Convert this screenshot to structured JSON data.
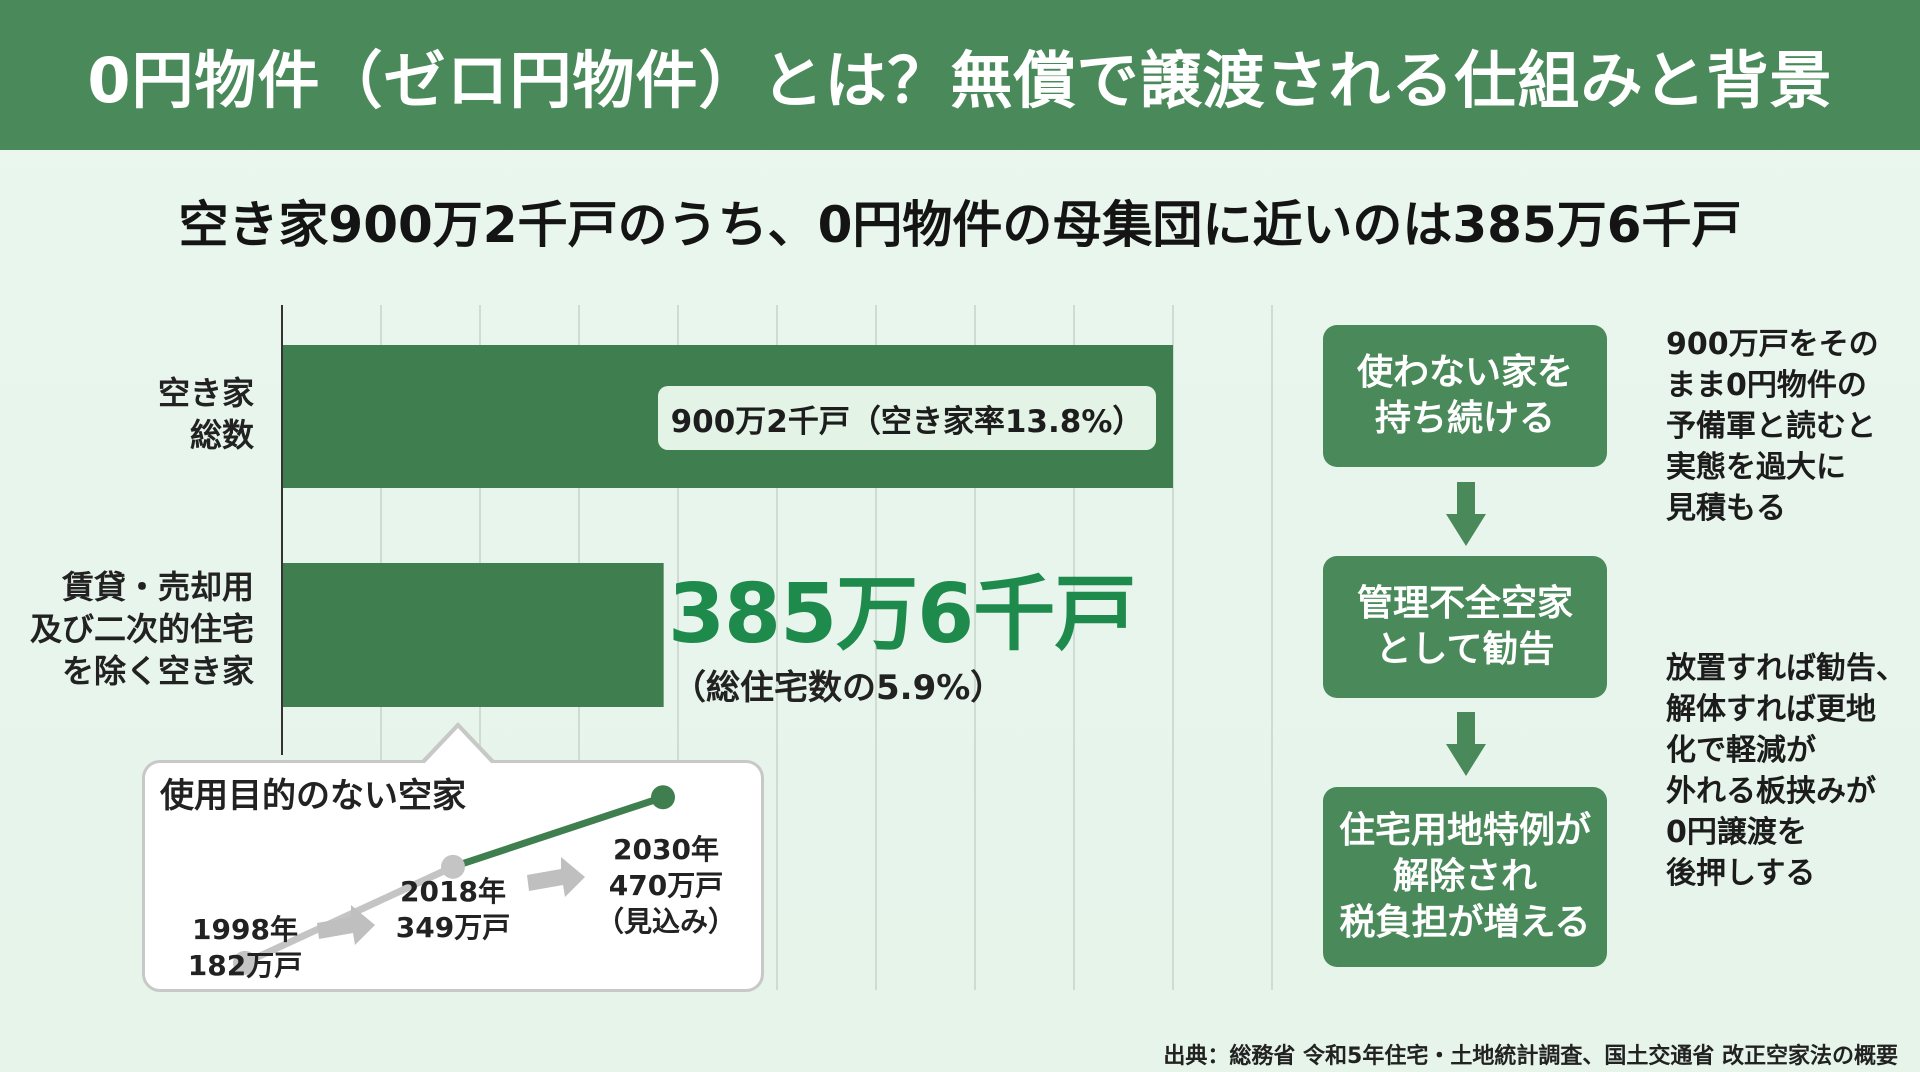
{
  "header": {
    "title": "0円物件（ゼロ円物件）とは？無償で譲渡される仕組みと背景"
  },
  "subtitle": "空き家900万2千戸のうち、0円物件の母集団に近いのは385万6千戸",
  "chart_data": {
    "type": "bar",
    "orientation": "horizontal",
    "categories": [
      "空き家\n総数",
      "賃貸・売却用\n及び二次的住宅\nを除く空き家"
    ],
    "values": [
      900.2,
      385.6
    ],
    "unit": "万戸",
    "xlim": [
      0,
      900.2
    ],
    "grid": true,
    "bar_color": "#3f7f4f",
    "data_labels": [
      "900万2千戸（空き家率13.8%）",
      "385万6千戸"
    ],
    "annotation": "（総住宅数の5.9%）"
  },
  "labels": {
    "cat1": [
      "空き家",
      "総数"
    ],
    "cat2": [
      "賃貸・売却用",
      "及び二次的住宅",
      "を除く空き家"
    ],
    "bar1_value": "900万2千戸（空き家率13.8%）",
    "bar2_value": "385万6千戸",
    "bar2_note": "（総住宅数の5.9%）"
  },
  "trend": {
    "title": "使用目的のない空家",
    "points": [
      {
        "year": "1998年",
        "value": "182万戸",
        "n": 182
      },
      {
        "year": "2018年",
        "value": "349万戸",
        "n": 349
      },
      {
        "year": "2030年",
        "value": "470万戸",
        "note": "（見込み）",
        "n": 470
      }
    ]
  },
  "flow": {
    "steps": [
      [
        "使わない家を",
        "持ち続ける"
      ],
      [
        "管理不全空家",
        "として勧告"
      ],
      [
        "住宅用地特例が",
        "解除され",
        "税負担が増える"
      ]
    ],
    "notes": [
      [
        "900万戸をその",
        "まま0円物件の",
        "予備軍と読むと",
        "実態を過大に",
        "見積もる"
      ],
      [
        "放置すれば勧告、",
        "解体すれば更地",
        "化で軽減が",
        "外れる板挟みが",
        "0円譲渡を",
        "後押しする"
      ]
    ]
  },
  "source": "出典：総務省 令和5年住宅・土地統計調査、国土交通省 改正空家法の概要",
  "colors": {
    "header": "#4a8a5a",
    "bar": "#3f7f4f",
    "accent": "#1e8a4c",
    "trend_old": "#c4c4c4",
    "trend_new": "#3f7f4f"
  }
}
